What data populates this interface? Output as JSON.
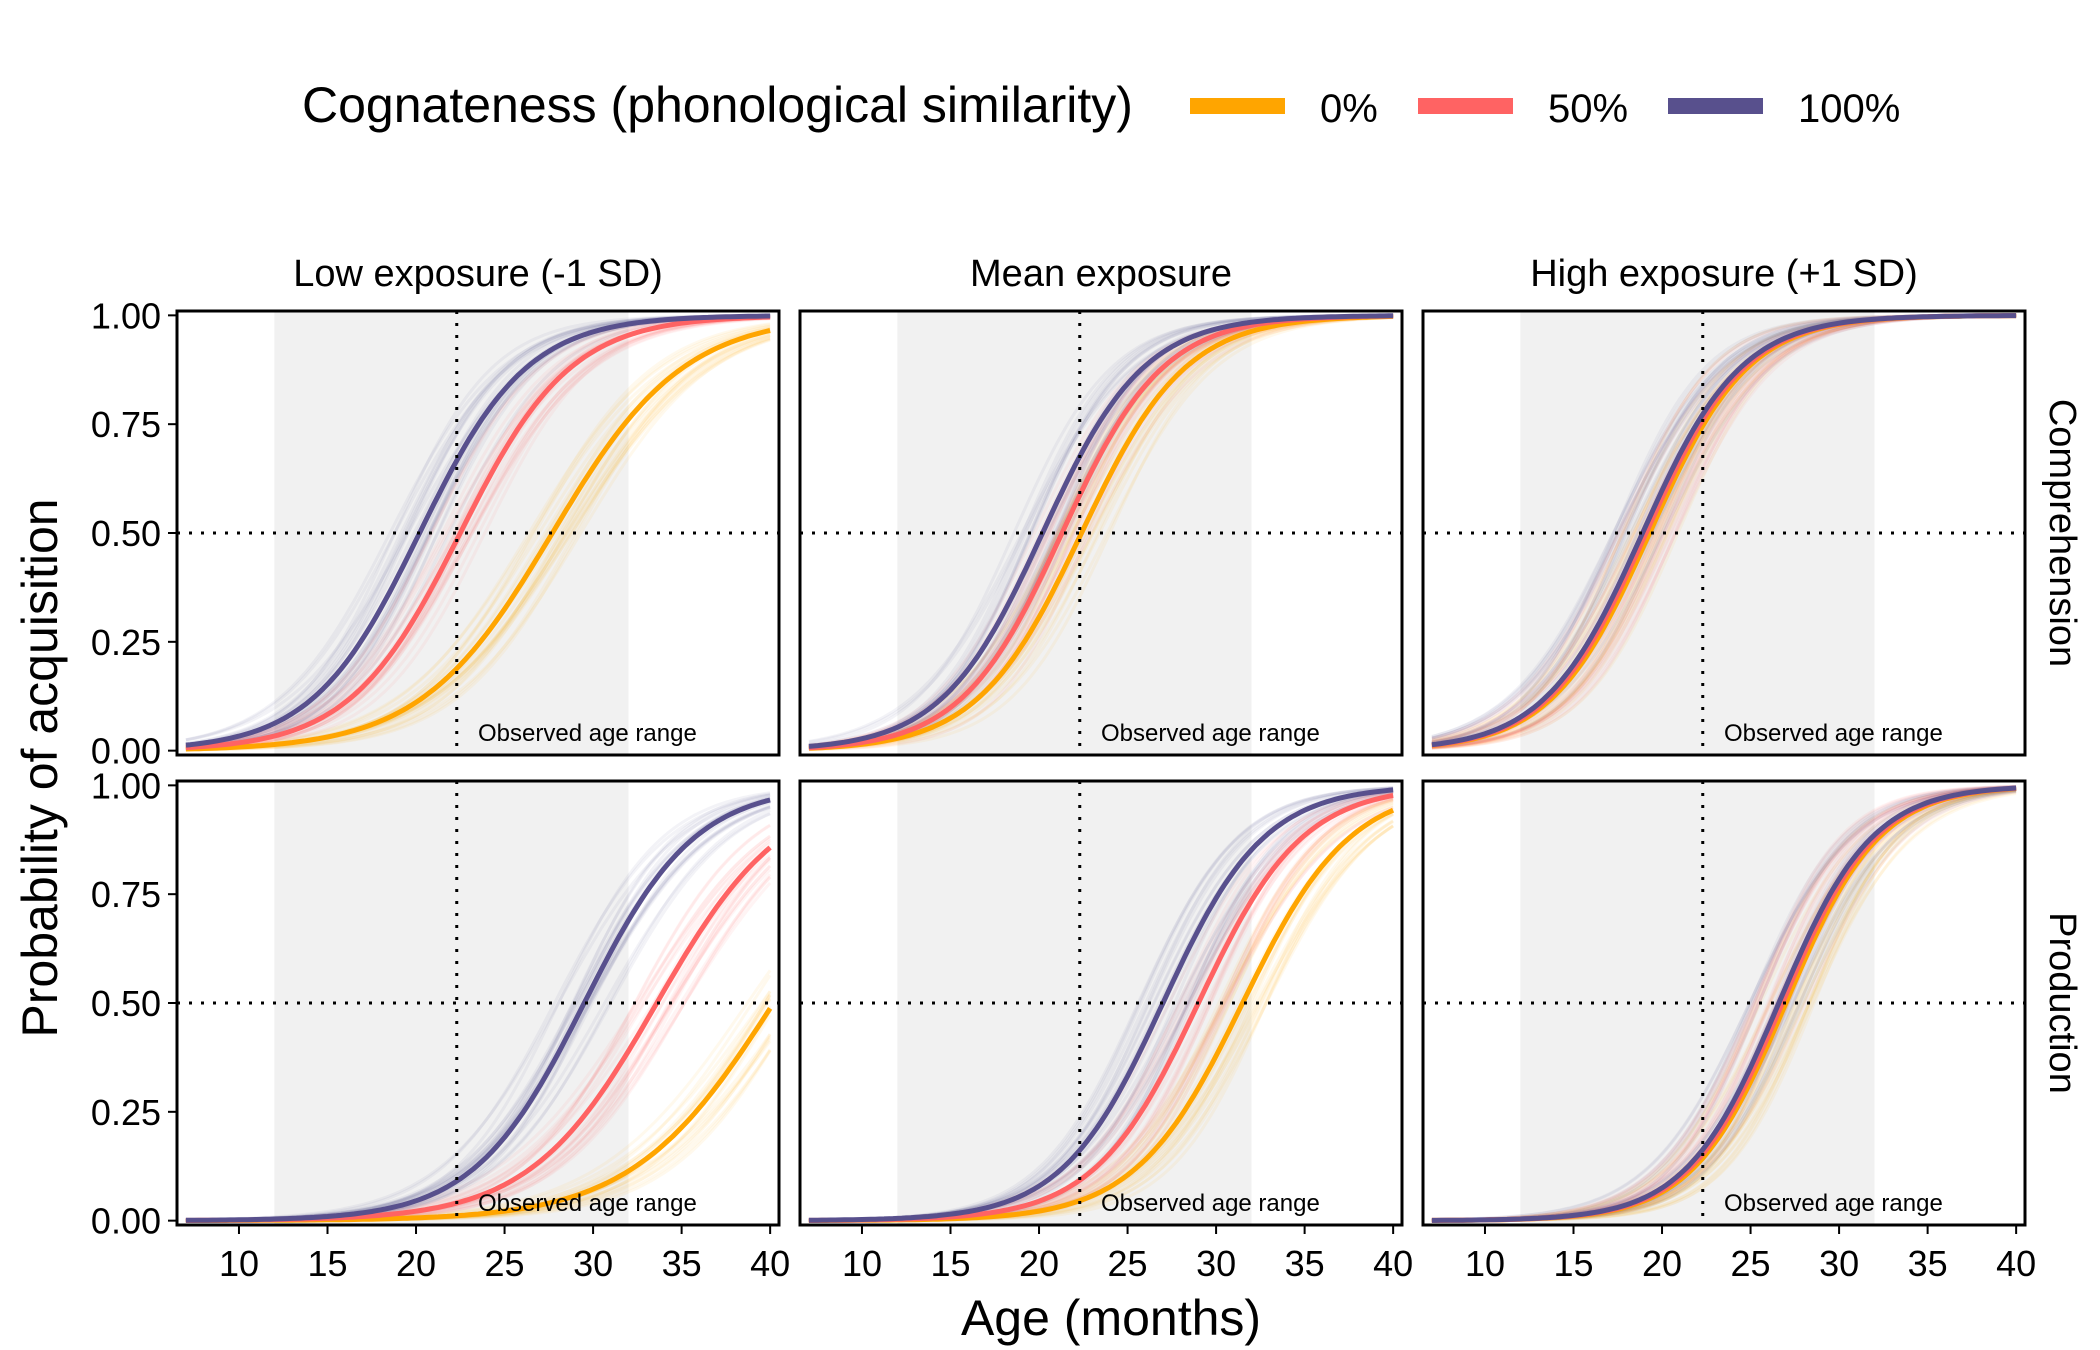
{
  "chart_data": {
    "type": "line",
    "title": "",
    "legend": {
      "title": "Cognateness (phonological similarity)",
      "placement": "top",
      "entries": [
        {
          "label": "0%",
          "color": "#FFA500"
        },
        {
          "label": "50%",
          "color": "#FF6363"
        },
        {
          "label": "100%",
          "color": "#58508D"
        }
      ]
    },
    "xlabel": "Age (months)",
    "ylabel": "Probability of acquisition",
    "xlim": [
      6.5,
      40.5
    ],
    "ylim": [
      -0.01,
      1.01
    ],
    "xticks": [
      "10",
      "15",
      "20",
      "25",
      "30",
      "35",
      "40"
    ],
    "yticks": [
      "0.00",
      "0.25",
      "0.50",
      "0.75",
      "1.00"
    ],
    "x_range": [
      7,
      40
    ],
    "observed_age_range": [
      12,
      32
    ],
    "observed_label": "Observed age range",
    "reference_x": 22.3,
    "reference_y": 0.5,
    "posterior_draws": true,
    "columns": [
      "Low exposure (-1 SD)",
      "Mean exposure",
      "High exposure (+1 SD)"
    ],
    "rows": [
      "Comprehension",
      "Production"
    ],
    "panels": [
      {
        "column": "Low exposure (-1 SD)",
        "row": "Comprehension",
        "series": [
          {
            "name": "0%",
            "midpoint": 27.7,
            "slope": 0.27
          },
          {
            "name": "50%",
            "midpoint": 22.5,
            "slope": 0.32
          },
          {
            "name": "100%",
            "midpoint": 20.2,
            "slope": 0.33
          }
        ]
      },
      {
        "column": "Mean exposure",
        "row": "Comprehension",
        "series": [
          {
            "name": "0%",
            "midpoint": 22.4,
            "slope": 0.34
          },
          {
            "name": "50%",
            "midpoint": 21.3,
            "slope": 0.35
          },
          {
            "name": "100%",
            "midpoint": 20.2,
            "slope": 0.35
          }
        ]
      },
      {
        "column": "High exposure (+1 SD)",
        "row": "Comprehension",
        "series": [
          {
            "name": "0%",
            "midpoint": 19.3,
            "slope": 0.36
          },
          {
            "name": "50%",
            "midpoint": 19.1,
            "slope": 0.36
          },
          {
            "name": "100%",
            "midpoint": 18.9,
            "slope": 0.36
          }
        ]
      },
      {
        "column": "Low exposure (-1 SD)",
        "row": "Production",
        "series": [
          {
            "name": "0%",
            "midpoint": 40.2,
            "slope": 0.25
          },
          {
            "name": "50%",
            "midpoint": 33.6,
            "slope": 0.28
          },
          {
            "name": "100%",
            "midpoint": 29.5,
            "slope": 0.32
          }
        ]
      },
      {
        "column": "Mean exposure",
        "row": "Production",
        "series": [
          {
            "name": "0%",
            "midpoint": 31.5,
            "slope": 0.33
          },
          {
            "name": "50%",
            "midpoint": 29.0,
            "slope": 0.34
          },
          {
            "name": "100%",
            "midpoint": 27.0,
            "slope": 0.35
          }
        ]
      },
      {
        "column": "High exposure (+1 SD)",
        "row": "Production",
        "series": [
          {
            "name": "0%",
            "midpoint": 27.0,
            "slope": 0.38
          },
          {
            "name": "50%",
            "midpoint": 26.8,
            "slope": 0.38
          },
          {
            "name": "100%",
            "midpoint": 26.6,
            "slope": 0.38
          }
        ]
      }
    ]
  }
}
